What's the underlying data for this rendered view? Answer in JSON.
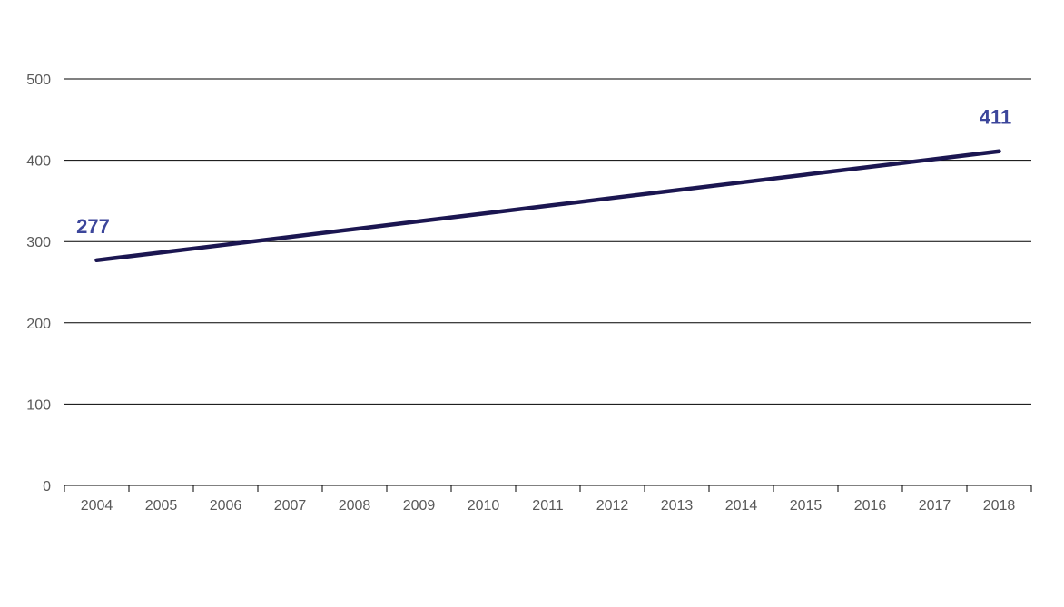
{
  "chart_data": {
    "type": "line",
    "title": "",
    "xlabel": "",
    "ylabel": "",
    "categories": [
      "2004",
      "2005",
      "2006",
      "2007",
      "2008",
      "2009",
      "2010",
      "2011",
      "2012",
      "2013",
      "2014",
      "2015",
      "2016",
      "2017",
      "2018"
    ],
    "series": [
      {
        "values": [
          277,
          286.6,
          296.1,
          305.7,
          315.3,
          324.9,
          334.4,
          344,
          353.6,
          363.1,
          372.7,
          382.3,
          391.9,
          401.4,
          411
        ],
        "color": "#1b1651"
      }
    ],
    "data_labels": [
      {
        "category": "2004",
        "text": "277"
      },
      {
        "category": "2018",
        "text": "411"
      }
    ],
    "data_label_color": "#3c469b",
    "ylim": [
      0,
      500
    ],
    "yticks": [
      "0",
      "100",
      "200",
      "300",
      "400",
      "500"
    ],
    "grid": true,
    "legend": "none",
    "gridline_color": "#000000",
    "tick_label_color": "#595959"
  }
}
